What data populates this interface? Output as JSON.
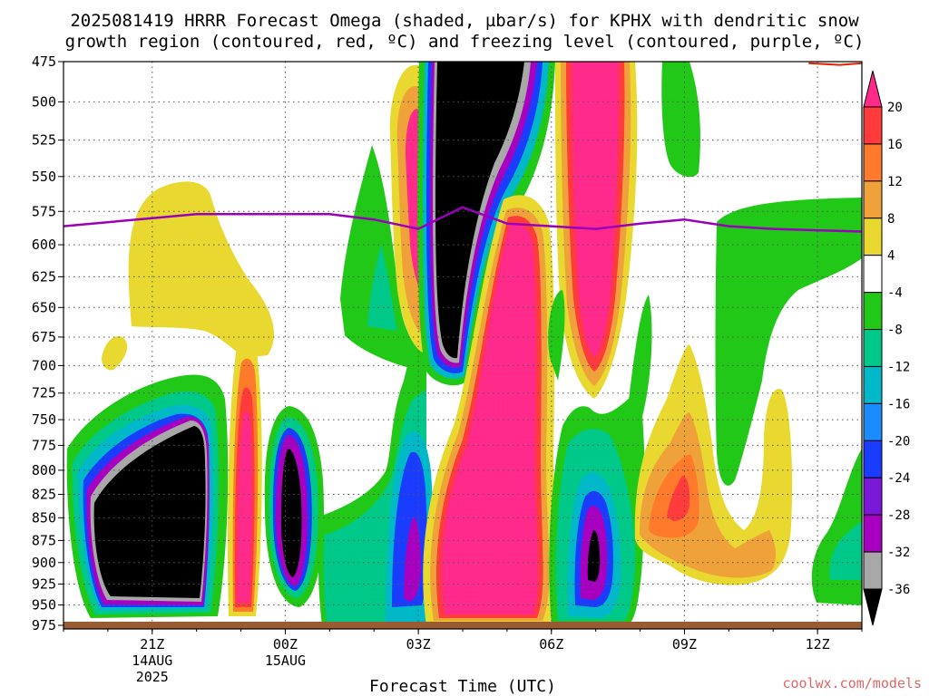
{
  "title_line1": "2025081419 HRRR Forecast Omega (shaded, µbar/s) for KPHX with dendritic snow",
  "title_line2": "growth region (contoured, red, ºC) and freezing level (contoured, purple, ºC)",
  "xlabel": "Forecast Time (UTC)",
  "credit": "coolwx.com/models",
  "colors": {
    "freezing_level": "#9900bb",
    "dgz": "#dd2200",
    "ground": "#9a5a32"
  },
  "chart_data": {
    "type": "heatmap",
    "title": "2025081419 HRRR Forecast Omega (shaded, µbar/s) for KPHX with dendritic snow growth region (contoured, red, ºC) and freezing level (contoured, purple, ºC)",
    "xlabel": "Forecast Time (UTC)",
    "ylabel": "",
    "y_scale": "log-pressure",
    "ylim": [
      975,
      475
    ],
    "xlim_hours_utc": [
      "2025-08-14 19Z",
      "2025-08-15 13Z"
    ],
    "grid": true,
    "y_ticks": [
      "475",
      "500",
      "525",
      "550",
      "575",
      "600",
      "625",
      "650",
      "675",
      "700",
      "725",
      "750",
      "775",
      "800",
      "825",
      "850",
      "875",
      "900",
      "925",
      "950",
      "975"
    ],
    "x_ticks": [
      {
        "label": "21Z",
        "sub1": "14AUG",
        "sub2": "2025",
        "hour": 21
      },
      {
        "label": "00Z",
        "sub1": "15AUG",
        "sub2": "",
        "hour": 24
      },
      {
        "label": "03Z",
        "sub1": "",
        "sub2": "",
        "hour": 27
      },
      {
        "label": "06Z",
        "sub1": "",
        "sub2": "",
        "hour": 30
      },
      {
        "label": "09Z",
        "sub1": "",
        "sub2": "",
        "hour": 33
      },
      {
        "label": "12Z",
        "sub1": "",
        "sub2": "",
        "hour": 36
      }
    ],
    "colorbar": {
      "labels": [
        "20",
        "16",
        "12",
        "8",
        "4",
        "-4",
        "-8",
        "-12",
        "-16",
        "-20",
        "-24",
        "-28",
        "-32",
        "-36"
      ],
      "colors": [
        "#ff2a8a",
        "#ff3b3b",
        "#ff7a2a",
        "#f0a23a",
        "#e8d830",
        "#ffffff",
        "#22c818",
        "#00c888",
        "#00b8c8",
        "#1a8cff",
        "#1a3cff",
        "#7a18d8",
        "#a800c0",
        "#a8a8a8",
        "#000000"
      ]
    },
    "freezing_level": {
      "hours": [
        19,
        21,
        22,
        24,
        25,
        26,
        27,
        28,
        29,
        30,
        31,
        32,
        33,
        34,
        35,
        36,
        37
      ],
      "pressure": [
        586,
        580,
        577,
        577,
        577,
        581,
        588,
        572,
        584,
        586,
        588,
        584,
        581,
        586,
        588,
        589,
        590
      ]
    },
    "dendritic_growth_region": {
      "hours": [
        35.8,
        36.5,
        37
      ],
      "pressure": [
        476,
        477,
        476
      ]
    }
  }
}
